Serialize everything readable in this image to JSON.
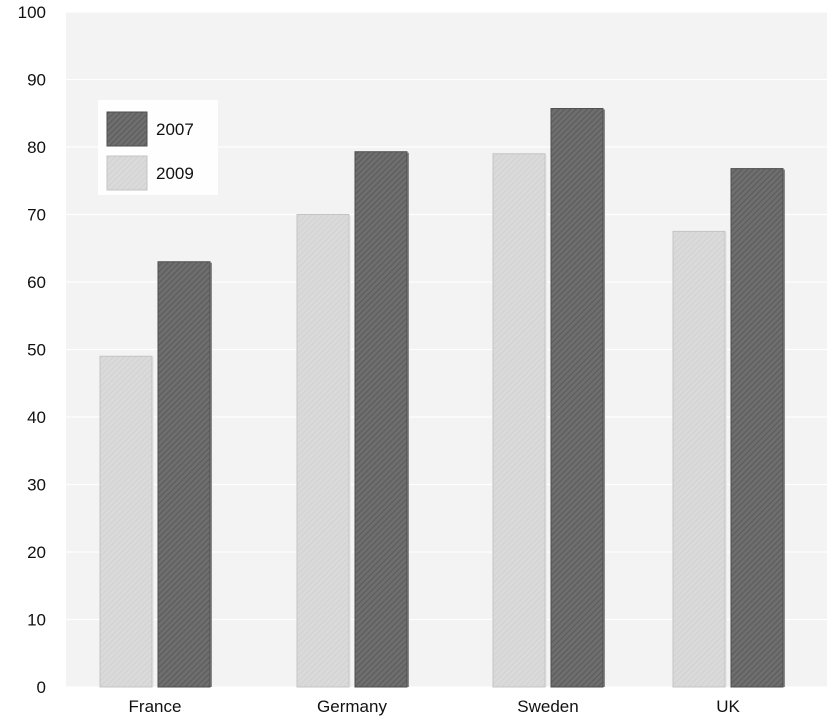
{
  "chart_data": {
    "type": "bar",
    "categories": [
      "France",
      "Germany",
      "Sweden",
      "UK"
    ],
    "series": [
      {
        "name": "2009",
        "values": [
          49,
          70,
          79,
          67.5
        ],
        "color": "#d6d6d6"
      },
      {
        "name": "2007",
        "values": [
          63,
          79.3,
          85.7,
          76.8
        ],
        "color": "#6e6e6e"
      }
    ],
    "ylim": [
      0,
      100
    ],
    "yticks": [
      0,
      10,
      20,
      30,
      40,
      50,
      60,
      70,
      80,
      90,
      100
    ],
    "legend": {
      "placement": "top-left",
      "order": [
        "2007",
        "2009"
      ]
    },
    "grid": true,
    "title": "",
    "xlabel": "",
    "ylabel": ""
  }
}
